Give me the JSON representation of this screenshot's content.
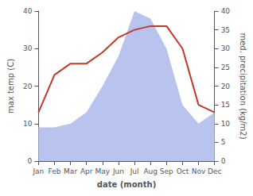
{
  "chart_data": {
    "type": "line",
    "categories": [
      "Jan",
      "Feb",
      "Mar",
      "Apr",
      "May",
      "Jun",
      "Jul",
      "Aug",
      "Sep",
      "Oct",
      "Nov",
      "Dec"
    ],
    "series": [
      {
        "type": "area",
        "color": "#b8c4ee",
        "axis": "y2",
        "values": [
          9,
          9,
          10,
          13,
          20,
          28,
          40,
          38,
          30,
          15,
          10,
          13
        ]
      },
      {
        "type": "line",
        "color": "#c0392b",
        "values": [
          13,
          23,
          26,
          26,
          29,
          33,
          35,
          36,
          36,
          30,
          15,
          13
        ]
      }
    ],
    "xlabel": "date (month)",
    "ylabel": "max temp (C)",
    "y2label": "med. precipitation (kg/m2)",
    "ylim": [
      0,
      40
    ],
    "yticks": [
      0,
      10,
      20,
      30,
      40
    ],
    "y2lim": [
      0,
      40
    ],
    "y2ticks": [
      0,
      5,
      10,
      15,
      20,
      25,
      30,
      35,
      40
    ],
    "grid": false
  }
}
